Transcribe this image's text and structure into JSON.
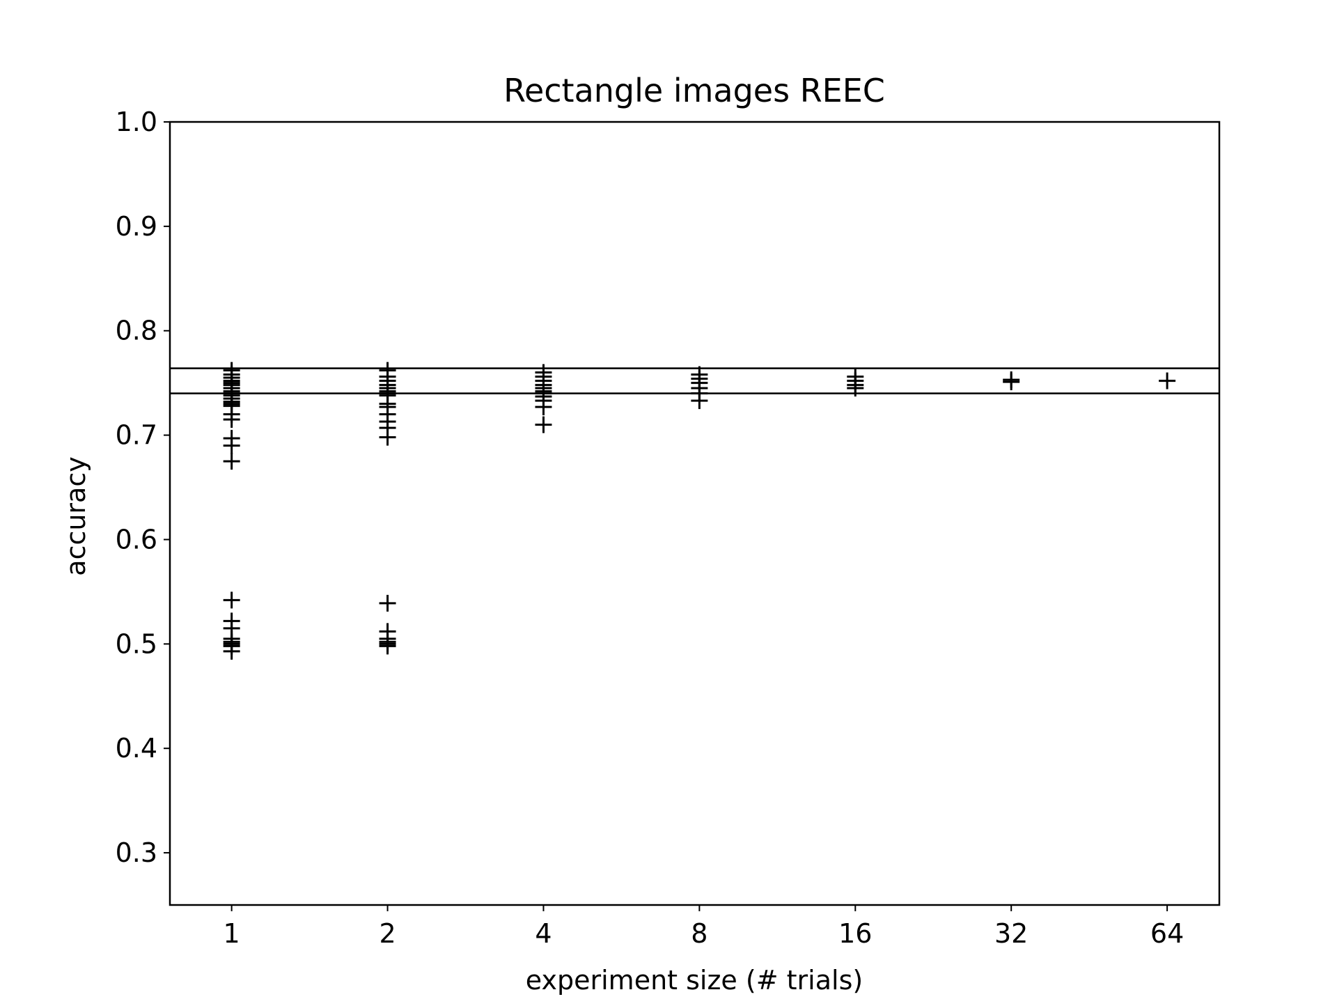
{
  "chart_data": {
    "type": "scatter",
    "title": "Rectangle images REEC",
    "xlabel": "experiment size (# trials)",
    "ylabel": "accuracy",
    "x_scale": "log2",
    "categories": [
      "1",
      "2",
      "4",
      "8",
      "16",
      "32",
      "64"
    ],
    "xlim": [
      0.76,
      80.7
    ],
    "ylim": [
      0.25,
      1.0
    ],
    "y_ticks": [
      "0.3",
      "0.4",
      "0.5",
      "0.6",
      "0.7",
      "0.8",
      "0.9",
      "1.0"
    ],
    "grid": false,
    "marker": "+",
    "marker_color": "#000000",
    "hlines": [
      0.764,
      0.74
    ],
    "series": [
      {
        "points": [
          [
            1,
            0.762
          ],
          [
            1,
            0.758
          ],
          [
            1,
            0.755
          ],
          [
            1,
            0.752
          ],
          [
            1,
            0.75
          ],
          [
            1,
            0.748
          ],
          [
            1,
            0.745
          ],
          [
            1,
            0.742
          ],
          [
            1,
            0.74
          ],
          [
            1,
            0.738
          ],
          [
            1,
            0.735
          ],
          [
            1,
            0.732
          ],
          [
            1,
            0.73
          ],
          [
            1,
            0.728
          ],
          [
            1,
            0.72
          ],
          [
            1,
            0.715
          ],
          [
            1,
            0.697
          ],
          [
            1,
            0.69
          ],
          [
            1,
            0.675
          ],
          [
            1,
            0.542
          ],
          [
            1,
            0.522
          ],
          [
            1,
            0.515
          ],
          [
            1,
            0.505
          ],
          [
            1,
            0.502
          ],
          [
            1,
            0.5
          ],
          [
            1,
            0.498
          ],
          [
            1,
            0.493
          ],
          [
            2,
            0.762
          ],
          [
            2,
            0.756
          ],
          [
            2,
            0.752
          ],
          [
            2,
            0.748
          ],
          [
            2,
            0.745
          ],
          [
            2,
            0.742
          ],
          [
            2,
            0.74
          ],
          [
            2,
            0.738
          ],
          [
            2,
            0.73
          ],
          [
            2,
            0.727
          ],
          [
            2,
            0.72
          ],
          [
            2,
            0.713
          ],
          [
            2,
            0.707
          ],
          [
            2,
            0.698
          ],
          [
            2,
            0.539
          ],
          [
            2,
            0.512
          ],
          [
            2,
            0.505
          ],
          [
            2,
            0.502
          ],
          [
            2,
            0.5
          ],
          [
            2,
            0.498
          ],
          [
            4,
            0.76
          ],
          [
            4,
            0.756
          ],
          [
            4,
            0.752
          ],
          [
            4,
            0.748
          ],
          [
            4,
            0.745
          ],
          [
            4,
            0.742
          ],
          [
            4,
            0.74
          ],
          [
            4,
            0.737
          ],
          [
            4,
            0.733
          ],
          [
            4,
            0.727
          ],
          [
            4,
            0.71
          ],
          [
            8,
            0.758
          ],
          [
            8,
            0.754
          ],
          [
            8,
            0.75
          ],
          [
            8,
            0.745
          ],
          [
            8,
            0.74
          ],
          [
            8,
            0.733
          ],
          [
            16,
            0.756
          ],
          [
            16,
            0.752
          ],
          [
            16,
            0.748
          ],
          [
            16,
            0.745
          ],
          [
            32,
            0.753
          ],
          [
            32,
            0.751
          ],
          [
            64,
            0.752
          ]
        ]
      }
    ]
  }
}
